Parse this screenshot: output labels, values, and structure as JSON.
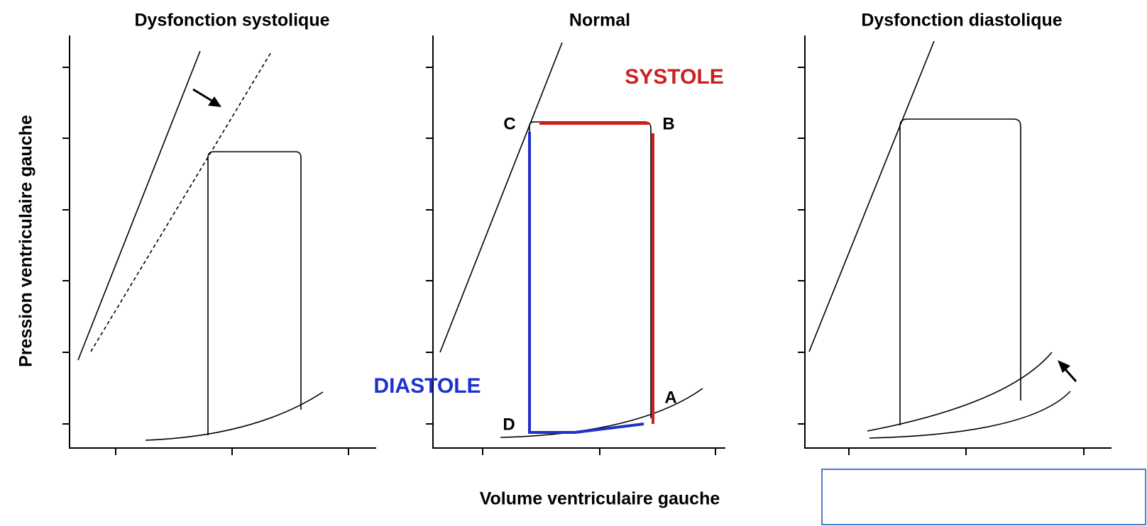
{
  "panels": [
    {
      "title": "Dysfonction systolique"
    },
    {
      "title": "Normal",
      "labels": {
        "a": "A",
        "b": "B",
        "c": "C",
        "d": "D",
        "systole": "SYSTOLE",
        "diastole": "DIASTOLE"
      }
    },
    {
      "title": "Dysfonction diastolique"
    }
  ],
  "y_axis_label": "Pression ventriculaire gauche",
  "x_axis_label": "Volume ventriculaire gauche"
}
